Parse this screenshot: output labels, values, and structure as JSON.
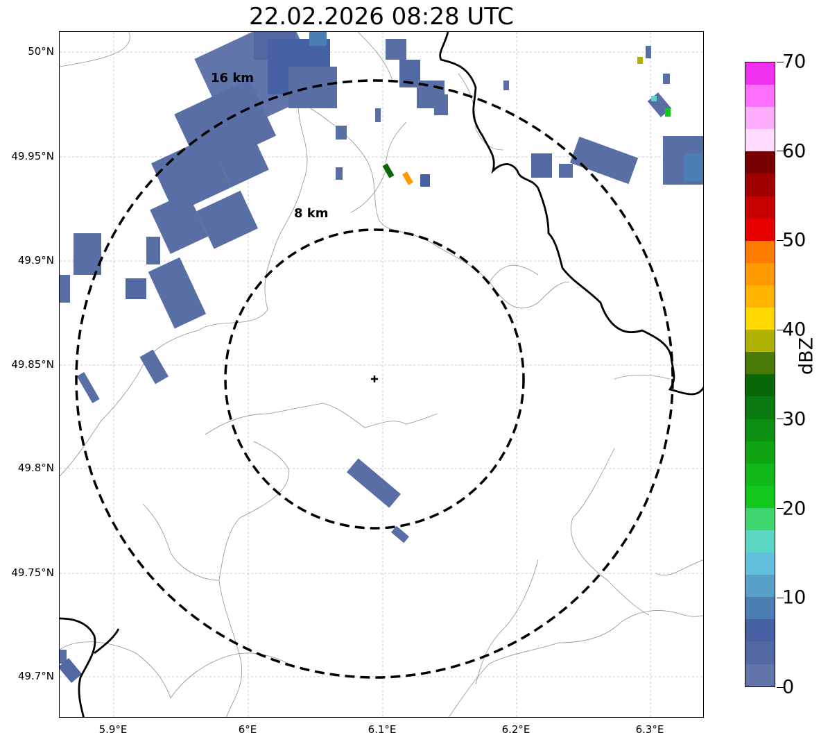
{
  "title": "22.02.2026 08:28 UTC",
  "y_axis_ticks": [
    "50°N",
    "49.95°N",
    "49.9°N",
    "49.85°N",
    "49.8°N",
    "49.75°N",
    "49.7°N"
  ],
  "x_axis_ticks": [
    "5.9°E",
    "6°E",
    "6.1°E",
    "6.2°E",
    "6.3°E"
  ],
  "range_rings": [
    {
      "label": "16 km",
      "radius_km": 16
    },
    {
      "label": "8 km",
      "radius_km": 8
    }
  ],
  "radar_site": {
    "lon": 6.095,
    "lat": 49.843
  },
  "colorbar": {
    "unit": "dBZ",
    "tick_labels": [
      "0",
      "10",
      "20",
      "30",
      "40",
      "50",
      "60",
      "70"
    ],
    "colors": [
      "#6274a8",
      "#5268a2",
      "#4661a4",
      "#4c7db3",
      "#58a0c8",
      "#63c0dc",
      "#5dd6c3",
      "#3cd56e",
      "#12c71c",
      "#12b818",
      "#0fa512",
      "#0d8f12",
      "#0a7b10",
      "#086808",
      "#497a08",
      "#aeb202",
      "#ffd800",
      "#ffb400",
      "#ff9a00",
      "#ff7d00",
      "#e60000",
      "#c80000",
      "#a00000",
      "#780000",
      "#ffdcff",
      "#ffaeff",
      "#ff6eff",
      "#f032f0"
    ]
  },
  "colors": {
    "ring": "#000000",
    "border": "#000000",
    "admin": "#909090",
    "grid": "#bbbbbb"
  }
}
